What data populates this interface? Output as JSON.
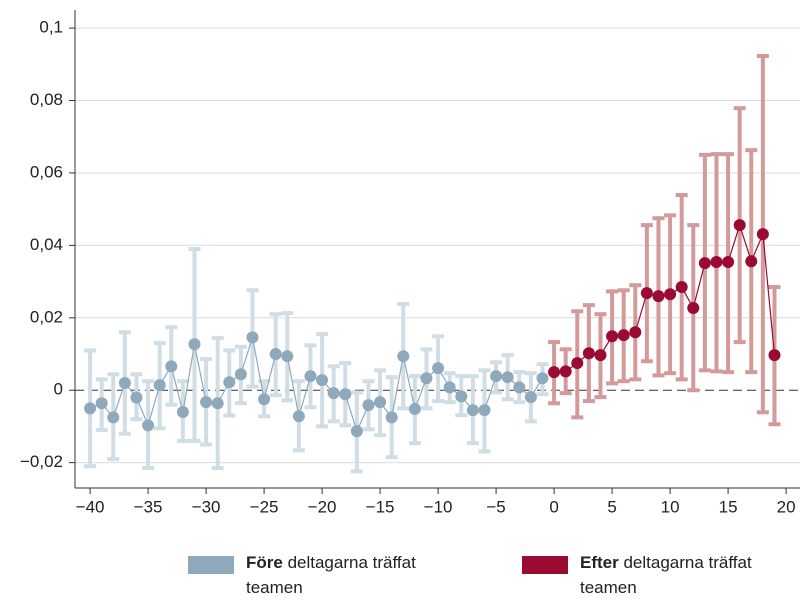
{
  "chart_data": {
    "type": "errorbar",
    "xlim": [
      -41.3,
      21.2
    ],
    "xticks": [
      {
        "value": -40,
        "label": "−40"
      },
      {
        "value": -35,
        "label": "−35"
      },
      {
        "value": -30,
        "label": "−30"
      },
      {
        "value": -25,
        "label": "−25"
      },
      {
        "value": -20,
        "label": "−20"
      },
      {
        "value": -15,
        "label": "−15"
      },
      {
        "value": -10,
        "label": "−10"
      },
      {
        "value": -5,
        "label": "−5"
      },
      0,
      5,
      10,
      15,
      20
    ],
    "ylim": [
      -0.027,
      0.105
    ],
    "yticks": [
      {
        "value": -0.02,
        "label": "−0,02"
      },
      0,
      {
        "value": 0.02,
        "label": "0,02"
      },
      {
        "value": 0.04,
        "label": "0,04"
      },
      {
        "value": 0.06,
        "label": "0,06"
      },
      {
        "value": 0.08,
        "label": "0,08"
      },
      {
        "value": 0.1,
        "label": "0,1"
      }
    ],
    "grid": true,
    "series": [
      {
        "name": "Före deltagarna träffat teamen",
        "color": "#8fa9bc",
        "ci_color": "#d0dde5",
        "x": [
          -40,
          -39,
          -38,
          -37,
          -36,
          -35,
          -34,
          -33,
          -32,
          -31,
          -30,
          -29,
          -28,
          -27,
          -26,
          -25,
          -24,
          -23,
          -22,
          -21,
          -20,
          -19,
          -18,
          -17,
          -16,
          -15,
          -14,
          -13,
          -12,
          -11,
          -10,
          -9,
          -8,
          -7,
          -6,
          -5,
          -4,
          -3,
          -2,
          -1
        ],
        "values": [
          -0.005,
          -0.0036,
          -0.0075,
          0.002,
          -0.002,
          -0.0097,
          0.0014,
          0.0066,
          -0.006,
          0.0127,
          -0.0033,
          -0.0036,
          0.0022,
          0.0044,
          0.0146,
          -0.0025,
          0.01,
          0.0094,
          -0.0072,
          0.0039,
          0.0028,
          -0.0008,
          -0.0011,
          -0.0113,
          -0.0041,
          -0.0033,
          -0.0075,
          0.0094,
          -0.0052,
          0.0033,
          0.0061,
          0.0008,
          -0.0017,
          -0.0055,
          -0.0055,
          0.0039,
          0.0036,
          0.0008,
          -0.0019,
          0.0033
        ],
        "ci_low": [
          -0.021,
          -0.011,
          -0.019,
          -0.012,
          -0.008,
          -0.0215,
          -0.0105,
          -0.004,
          -0.014,
          -0.014,
          -0.015,
          -0.0215,
          -0.007,
          -0.0036,
          0.001,
          -0.0072,
          -0.0014,
          -0.0028,
          -0.0166,
          -0.0047,
          -0.01,
          -0.0086,
          -0.0097,
          -0.0224,
          -0.0108,
          -0.0124,
          -0.0185,
          -0.005,
          -0.0146,
          -0.005,
          -0.003,
          -0.0033,
          -0.0069,
          -0.0146,
          -0.0169,
          -0.0006,
          -0.0025,
          -0.0033,
          -0.0086,
          -0.0011
        ],
        "ci_high": [
          0.011,
          0.003,
          0.0044,
          0.016,
          0.0044,
          0.0025,
          0.013,
          0.0174,
          0.0025,
          0.039,
          0.0086,
          0.0144,
          0.011,
          0.012,
          0.0276,
          0.0025,
          0.021,
          0.0213,
          0.0025,
          0.0124,
          0.0155,
          0.0066,
          0.0075,
          -0.0006,
          0.0025,
          0.0055,
          0.0036,
          0.0238,
          0.0039,
          0.0113,
          0.0149,
          0.0047,
          0.0039,
          0.0039,
          0.0055,
          0.0077,
          0.0097,
          0.005,
          0.0047,
          0.0072
        ]
      },
      {
        "name": "Efter deltagarna träffat teamen",
        "color": "#9b0a33",
        "ci_color": "#d49a9a",
        "x": [
          0,
          1,
          2,
          3,
          4,
          5,
          6,
          7,
          8,
          9,
          10,
          11,
          12,
          13,
          14,
          15,
          16,
          17,
          18,
          19
        ],
        "values": [
          0.005,
          0.0052,
          0.0075,
          0.0102,
          0.0097,
          0.0149,
          0.0152,
          0.016,
          0.0268,
          0.026,
          0.0265,
          0.0285,
          0.0227,
          0.0351,
          0.0354,
          0.0354,
          0.0456,
          0.0356,
          0.0431,
          0.0097
        ],
        "ci_low": [
          -0.0036,
          -0.0008,
          -0.0075,
          -0.003,
          -0.0019,
          0.0019,
          0.0025,
          0.003,
          0.008,
          0.0041,
          0.0047,
          0.003,
          0,
          0.0055,
          0.0052,
          0.005,
          0.0133,
          0.005,
          -0.0061,
          -0.0094
        ],
        "ci_high": [
          0.0133,
          0.0113,
          0.0218,
          0.0235,
          0.021,
          0.0273,
          0.0276,
          0.029,
          0.0456,
          0.0475,
          0.0483,
          0.0539,
          0.0456,
          0.065,
          0.0652,
          0.0652,
          0.0779,
          0.0663,
          0.0923,
          0.0285
        ]
      }
    ]
  }
}
